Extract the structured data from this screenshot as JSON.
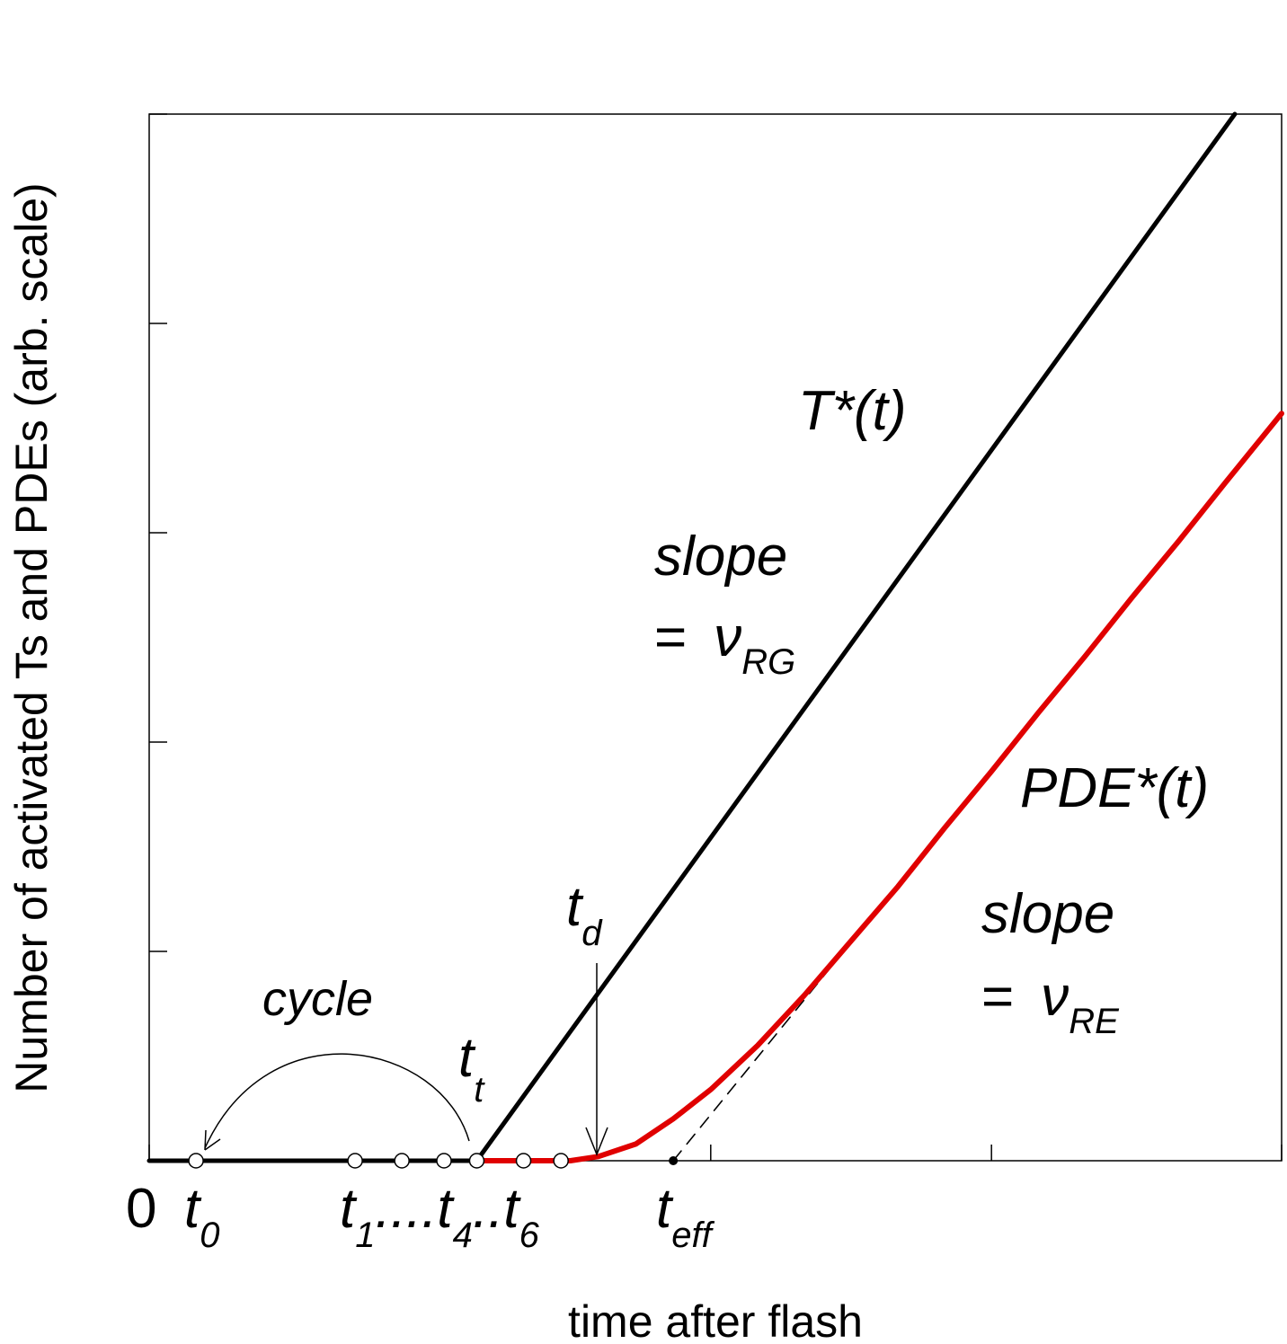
{
  "chart_data": {
    "type": "line",
    "xlabel": "time after flash",
    "ylabel": "Number of activated Ts and PDEs (arb. scale)",
    "xlim": [
      0,
      12.1
    ],
    "ylim": [
      0,
      5
    ],
    "grid": false,
    "y_ticks": [
      0,
      1,
      2,
      3,
      4,
      5
    ],
    "x_ticks": [
      0,
      6,
      9,
      12.1
    ],
    "x_annotations": {
      "zero": "0",
      "t0": {
        "base": "t",
        "sub": "0"
      },
      "t1": {
        "base": "t",
        "sub": "1"
      },
      "dots1": "....",
      "t4": {
        "base": "t",
        "sub": "4"
      },
      "dots2": "..",
      "t6": {
        "base": "t",
        "sub": "6"
      },
      "teff": {
        "base": "t",
        "sub": "eff"
      }
    },
    "event_times": {
      "t0": 0.5,
      "t1": 2.2,
      "t2": 2.7,
      "t3": 3.15,
      "t4": 3.5,
      "t5": 4.0,
      "t6": 4.4,
      "teff": 5.6
    },
    "series": [
      {
        "name": "T*(t)",
        "color": "#000000",
        "x": [
          0,
          3.5,
          11.6
        ],
        "y": [
          0,
          0,
          5
        ]
      },
      {
        "name": "PDE*(t)",
        "color": "#e00000",
        "x": [
          3.5,
          4.5,
          4.8,
          5.2,
          5.6,
          6.0,
          6.5,
          7.0,
          7.5,
          8.0,
          8.5,
          9.0,
          9.5,
          10.0,
          10.5,
          11.0,
          11.5,
          12.1
        ],
        "y": [
          0,
          0,
          0.02,
          0.08,
          0.2,
          0.34,
          0.55,
          0.79,
          1.05,
          1.31,
          1.59,
          1.86,
          2.14,
          2.41,
          2.69,
          2.96,
          3.24,
          3.57
        ]
      },
      {
        "name": "asymptote",
        "color": "#000000",
        "dashed": true,
        "x": [
          5.6,
          12.1
        ],
        "y": [
          0,
          3.57
        ]
      }
    ],
    "annotations": {
      "T_label": "T*(t)",
      "PDE_label": "PDE*(t)",
      "slope1_word": "slope",
      "slope1_eq": "=",
      "slope1_sym": "ν",
      "slope1_sub": "RG",
      "slope2_word": "slope",
      "slope2_eq": "=",
      "slope2_sym": "ν",
      "slope2_sub": "RE",
      "td": {
        "base": "t",
        "sub": "d"
      },
      "tt": {
        "base": "t",
        "sub": "t"
      },
      "cycle": "cycle"
    }
  }
}
